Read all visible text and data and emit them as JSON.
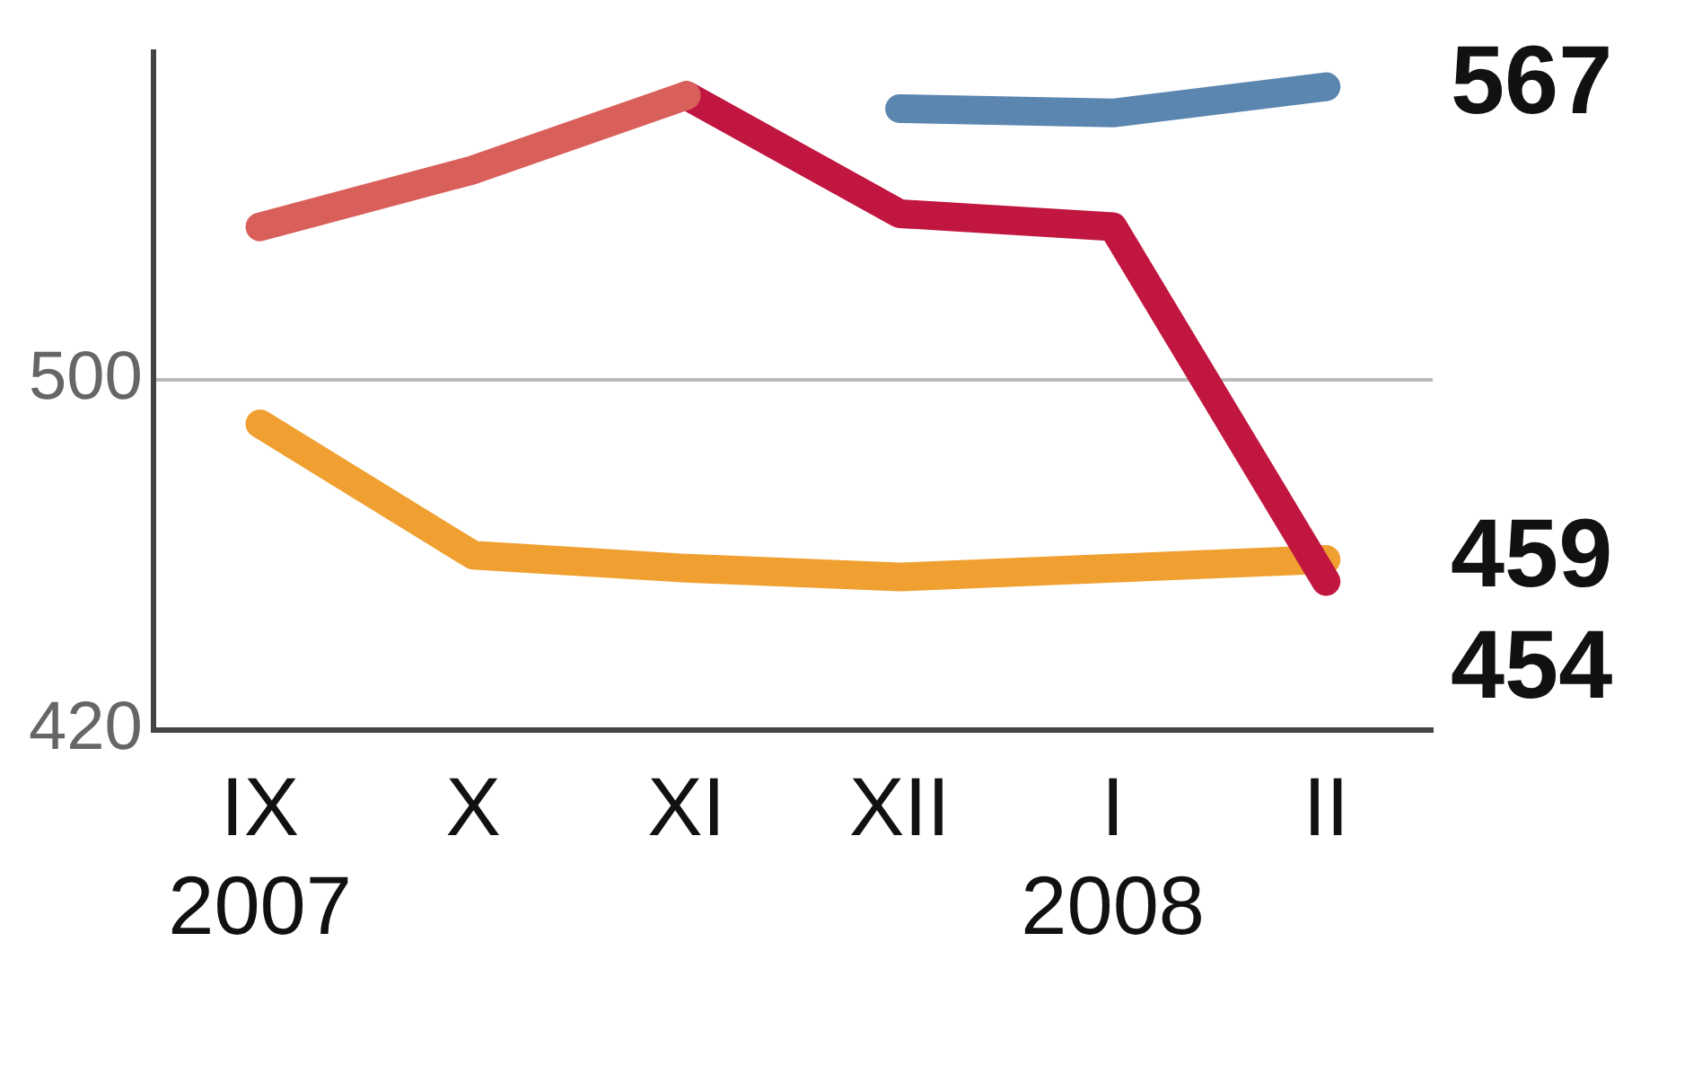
{
  "chart_data": {
    "type": "line",
    "categories": [
      "IX\n2007",
      "X",
      "XI",
      "XII",
      "I\n2008",
      "II"
    ],
    "series": [
      {
        "color": "#d9605a",
        "values": [
          535,
          548,
          565,
          null,
          null,
          null
        ],
        "value_labels": [
          null,
          null,
          null,
          null,
          null,
          null
        ]
      },
      {
        "color": "#c0163f",
        "values": [
          null,
          null,
          565,
          538,
          535,
          454
        ],
        "value_labels": [
          null,
          null,
          null,
          null,
          null,
          "454"
        ]
      },
      {
        "color": "#5b86b0",
        "values": [
          null,
          null,
          null,
          562,
          561,
          567
        ],
        "value_labels": [
          null,
          null,
          null,
          null,
          null,
          "567"
        ]
      },
      {
        "color": "#f0a030",
        "values": [
          490,
          460,
          457,
          455,
          457,
          459
        ],
        "value_labels": [
          null,
          null,
          null,
          null,
          null,
          "459"
        ]
      }
    ],
    "ylim": [
      420,
      575
    ],
    "yticks": [
      420,
      500
    ],
    "grid": "y",
    "legend": false,
    "marker": "none",
    "line_style": "solid"
  }
}
